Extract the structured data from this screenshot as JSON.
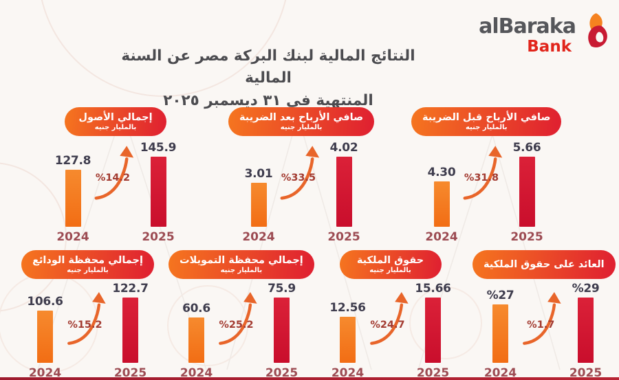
{
  "logo": {
    "brand": "alBaraka",
    "sub": "Bank"
  },
  "header": {
    "title_line1": "النتائج المالية لبنك البركة مصر عن السنة المالية",
    "title_line2": "المنتهية في ٣١ ديسمبر ٢٠٢٥"
  },
  "colors": {
    "bar_2024": "#F4771F",
    "bar_2025": "#D01A33",
    "pill_gradient_start": "#F5741F",
    "pill_gradient_end": "#E02230",
    "value_label": "#3E3C4D",
    "year_label": "#9C4B52",
    "growth_label": "#A33B31",
    "logo_gray": "#55565A",
    "logo_red": "#E1251B",
    "background": "#FAF7F4"
  },
  "chart_data": [
    {
      "type": "bar",
      "title": "إجمالي الأصول",
      "unit": "بالمليار جنيه",
      "categories": [
        "2024",
        "2025"
      ],
      "values": [
        127.8,
        145.9
      ],
      "labels": [
        "127.8",
        "145.9"
      ],
      "growth_label": "%14.2",
      "growth_pct": 14.2
    },
    {
      "type": "bar",
      "title": "صافي الأرباح بعد الضريبة",
      "unit": "بالمليار جنيه",
      "categories": [
        "2024",
        "2025"
      ],
      "values": [
        3.01,
        4.02
      ],
      "labels": [
        "3.01",
        "4.02"
      ],
      "growth_label": "%33.5",
      "growth_pct": 33.5
    },
    {
      "type": "bar",
      "title": "صافي الأرباح قبل الضريبة",
      "unit": "بالمليار جنيه",
      "categories": [
        "2024",
        "2025"
      ],
      "values": [
        4.3,
        5.66
      ],
      "labels": [
        "4.30",
        "5.66"
      ],
      "growth_label": "%31.8",
      "growth_pct": 31.8
    },
    {
      "type": "bar",
      "title": "إجمالي محفظة الودائع",
      "unit": "بالمليار جنيه",
      "categories": [
        "2024",
        "2025"
      ],
      "values": [
        106.6,
        122.7
      ],
      "labels": [
        "106.6",
        "122.7"
      ],
      "growth_label": "%15.2",
      "growth_pct": 15.2
    },
    {
      "type": "bar",
      "title": "إجمالي محفظة التمويلات",
      "unit": "بالمليار جنيه",
      "categories": [
        "2024",
        "2025"
      ],
      "values": [
        60.6,
        75.9
      ],
      "labels": [
        "60.6",
        "75.9"
      ],
      "growth_label": "%25.2",
      "growth_pct": 25.2
    },
    {
      "type": "bar",
      "title": "حقوق الملكية",
      "unit": "بالمليار جنيه",
      "categories": [
        "2024",
        "2025"
      ],
      "values": [
        12.56,
        15.66
      ],
      "labels": [
        "12.56",
        "15.66"
      ],
      "growth_label": "%24.7",
      "growth_pct": 24.7
    },
    {
      "type": "bar",
      "title": "العائد على حقوق الملكية",
      "categories": [
        "2024",
        "2025"
      ],
      "values": [
        27,
        29
      ],
      "labels": [
        "%27",
        "%29"
      ],
      "growth_label": "%1.7",
      "growth_pct": 1.7
    }
  ]
}
